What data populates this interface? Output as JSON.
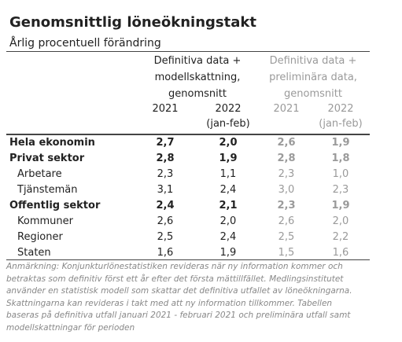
{
  "header": {
    "title": "Genomsnittlig löneökningstakt",
    "subtitle": "Årlig procentuell förändring"
  },
  "table": {
    "groups": [
      [
        "Definitiva data +",
        "modellskattning,",
        "genomsnitt"
      ],
      [
        "Definitiva data +",
        "preliminära data,",
        "genomsnitt"
      ]
    ],
    "columns": [
      [
        "2021"
      ],
      [
        "2022",
        "(jan-feb)"
      ],
      [
        "2021"
      ],
      [
        "2022",
        "(jan-feb)"
      ]
    ],
    "rows": [
      {
        "label": "Hela ekonomin",
        "bold": true,
        "indent": false,
        "values": [
          "2,7",
          "2,0",
          "2,6",
          "1,9"
        ]
      },
      {
        "label": "Privat sektor",
        "bold": true,
        "indent": false,
        "values": [
          "2,8",
          "1,9",
          "2,8",
          "1,8"
        ]
      },
      {
        "label": "Arbetare",
        "bold": false,
        "indent": true,
        "values": [
          "2,3",
          "1,1",
          "2,3",
          "1,0"
        ]
      },
      {
        "label": "Tjänstemän",
        "bold": false,
        "indent": true,
        "values": [
          "3,1",
          "2,4",
          "3,0",
          "2,3"
        ]
      },
      {
        "label": "Offentlig sektor",
        "bold": true,
        "indent": false,
        "values": [
          "2,4",
          "2,1",
          "2,3",
          "1,9"
        ]
      },
      {
        "label": "Kommuner",
        "bold": false,
        "indent": true,
        "values": [
          "2,6",
          "2,0",
          "2,6",
          "2,0"
        ]
      },
      {
        "label": "Regioner",
        "bold": false,
        "indent": true,
        "values": [
          "2,5",
          "2,4",
          "2,5",
          "2,2"
        ]
      },
      {
        "label": "Staten",
        "bold": false,
        "indent": true,
        "values": [
          "1,6",
          "1,9",
          "1,5",
          "1,6"
        ]
      }
    ]
  },
  "note": "Anmärkning: Konjunkturlönestatistiken revideras när ny information kommer och betraktas som definitiv först ett år efter det första mättillfället. Medlingsinstitutet använder en statistisk modell som skattar det definitiva utfallet av löneökningarna. Skattningarna kan revideras i takt med att ny information tillkommer. Tabellen baseras på definitiva utfall januari 2021 - februari 2021 och preliminära utfall samt modellskattningar för perioden"
}
